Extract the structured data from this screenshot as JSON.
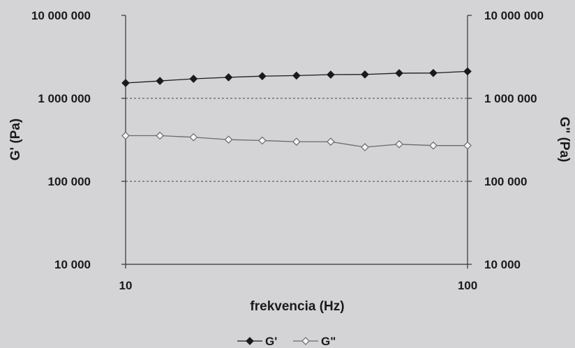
{
  "chart_data": {
    "type": "line",
    "x_scale": "log",
    "y_scale": "log",
    "xlabel": "frekvencia (Hz)",
    "ylabel_left": "G' (Pa)",
    "ylabel_right": "G\" (Pa)",
    "xlim": [
      10,
      100
    ],
    "ylim": [
      10000,
      10000000
    ],
    "x_ticks": [
      10,
      100
    ],
    "x_tick_labels": [
      "10",
      "100"
    ],
    "y_ticks": [
      10000,
      100000,
      1000000,
      10000000
    ],
    "y_tick_labels": [
      "10 000",
      "100 000",
      "1 000 000",
      "10 000 000"
    ],
    "grid": "horizontal dashed at 100 000 and 1 000 000",
    "legend_position": "bottom-center",
    "x": [
      10,
      12.6,
      15.8,
      20,
      25.1,
      31.6,
      39.8,
      50.1,
      63.1,
      79.4,
      100
    ],
    "series": [
      {
        "name": "G'",
        "marker": "filled-diamond",
        "color": "#1a1a1a",
        "values": [
          1530000,
          1620000,
          1720000,
          1790000,
          1850000,
          1880000,
          1930000,
          1940000,
          2010000,
          2020000,
          2110000
        ]
      },
      {
        "name": "G\"",
        "marker": "open-diamond",
        "color": "#6a6a6a",
        "values": [
          355000,
          355000,
          340000,
          318000,
          310000,
          300000,
          300000,
          258000,
          280000,
          270000,
          270000
        ]
      }
    ]
  }
}
